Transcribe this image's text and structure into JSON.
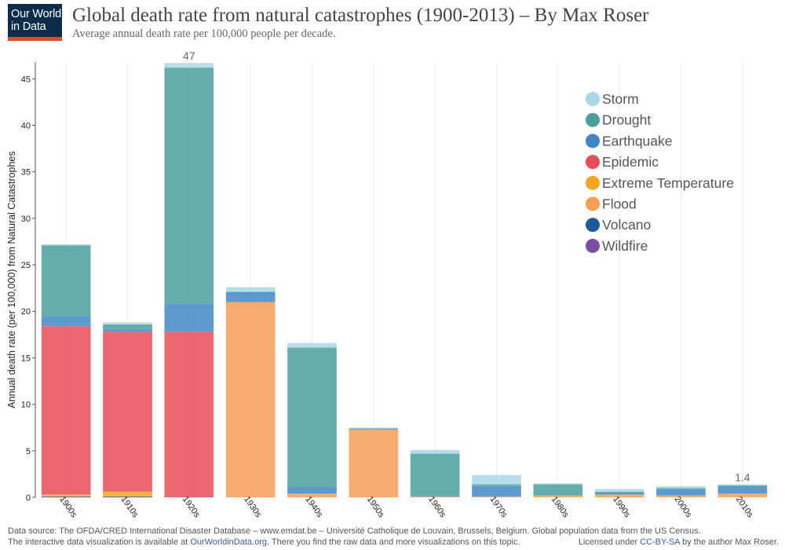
{
  "logo": {
    "line1": "Our World",
    "line2": "in Data"
  },
  "header": {
    "title": "Global death rate from natural catastrophes (1900-2013) – By Max Roser",
    "subtitle": "Average annual death rate per 100,000 people per decade."
  },
  "footer": {
    "source": "Data source: The OFDA/CRED International Disaster Database – www.emdat.be – Université Catholique de Louvain, Brussels, Belgium. Global population data from the US Census.",
    "line2_prefix": "The interactive data visualization is available at ",
    "line2_link": "OurWorldinData.org",
    "line2_suffix": ". There you find the raw data and more visualizations on this topic.",
    "license_prefix": "Licensed under ",
    "license_link": "CC-BY-SA",
    "license_suffix": " by the author Max Roser."
  },
  "chart_data": {
    "type": "bar",
    "stacked": true,
    "ylabel": "Annual death rate (per 100,000) from Natural Catastrophes",
    "ylim": [
      0,
      46.8
    ],
    "yticks": [
      0,
      5,
      10,
      15,
      20,
      25,
      30,
      35,
      40,
      45
    ],
    "grid": true,
    "legend_position": "top-right",
    "categories": [
      "1900s",
      "1910s",
      "1920s",
      "1930s",
      "1940s",
      "1950s",
      "1960s",
      "1970s",
      "1980s",
      "1990s",
      "2000s",
      "2010s"
    ],
    "series": [
      {
        "name": "Storm",
        "color": "#a8d8e6",
        "values": [
          0.1,
          0.2,
          0.5,
          0.5,
          0.5,
          0.1,
          0.4,
          1.0,
          0.1,
          0.3,
          0.2,
          0.1
        ]
      },
      {
        "name": "Drought",
        "color": "#4a9f99",
        "values": [
          7.6,
          0.5,
          25.4,
          0,
          15.0,
          0,
          4.5,
          0.2,
          1.1,
          0.1,
          0.1,
          0.1
        ]
      },
      {
        "name": "Earthquake",
        "color": "#3f88c5",
        "values": [
          1.1,
          0.3,
          3.0,
          1.1,
          0.7,
          0.1,
          0.1,
          1.1,
          0.1,
          0.2,
          0.7,
          0.8
        ]
      },
      {
        "name": "Epidemic",
        "color": "#e84c57",
        "values": [
          18.1,
          17.2,
          17.8,
          0,
          0,
          0,
          0,
          0,
          0,
          0,
          0,
          0
        ]
      },
      {
        "name": "Extreme Temperature",
        "color": "#f5a623",
        "values": [
          0.1,
          0.5,
          0,
          0,
          0,
          0,
          0,
          0,
          0.1,
          0.1,
          0.1,
          0.1
        ]
      },
      {
        "name": "Flood",
        "color": "#f59e55",
        "values": [
          0.1,
          0,
          0,
          21.0,
          0.4,
          7.3,
          0.1,
          0.1,
          0.1,
          0.2,
          0.1,
          0.3
        ]
      },
      {
        "name": "Volcano",
        "color": "#1c5a9c",
        "values": [
          0.1,
          0.1,
          0,
          0,
          0,
          0,
          0,
          0,
          0,
          0,
          0,
          0
        ]
      },
      {
        "name": "Wildfire",
        "color": "#7a4fa3",
        "values": [
          0,
          0,
          0,
          0,
          0,
          0,
          0,
          0,
          0,
          0,
          0,
          0
        ]
      }
    ],
    "annotations": [
      {
        "category": "1920s",
        "text": "47"
      },
      {
        "category": "2010s",
        "text": "1.4"
      }
    ]
  }
}
